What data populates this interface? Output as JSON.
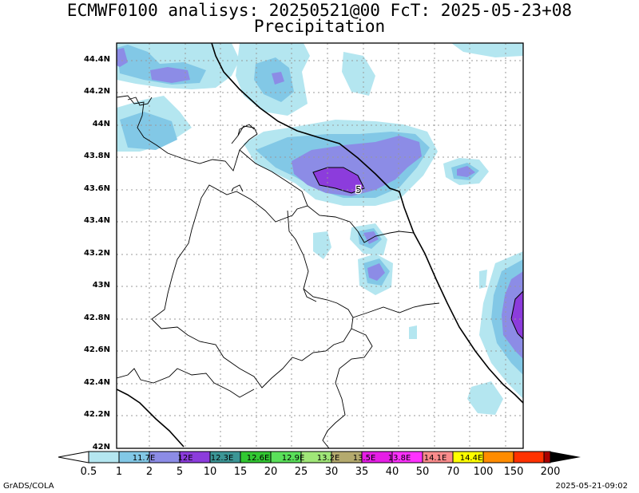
{
  "title": {
    "line1": "ECMWF0100 analisys: 20250521@00 FcT: 2025-05-23+08",
    "line2": "Precipitation"
  },
  "map": {
    "lat_labels": [
      "44.4N",
      "44.2N",
      "44N",
      "43.8N",
      "43.6N",
      "43.4N",
      "43.2N",
      "43N",
      "42.8N",
      "42.6N",
      "42.4N",
      "42.2N",
      "42N"
    ],
    "contour_label": "5",
    "grid": "dotted",
    "colors": {
      "light_blue": "#b4e6f0",
      "mid_blue": "#82c8e6",
      "lavender": "#8c8ce6",
      "purple": "#8c3cdc"
    }
  },
  "colorbar": {
    "labels": [
      "0.5",
      "1",
      "2",
      "5",
      "10",
      "15",
      "20",
      "25",
      "30",
      "35",
      "40",
      "50",
      "70",
      "100",
      "150",
      "200"
    ],
    "box_labels": [
      "11.7E",
      "12E",
      "12.3E",
      "12.6E",
      "12.9E",
      "13.2E",
      "13.5E",
      "13.8E",
      "14.1E",
      "14.4E"
    ],
    "colors": [
      "#b4e6f0",
      "#82c8e6",
      "#8c8ce6",
      "#8c3cdc",
      "#3c9696",
      "#32c832",
      "#5ae05a",
      "#a0e678",
      "#b4aa6e",
      "#e61ee6",
      "#ff32ff",
      "#fa8c8c",
      "#ffff00",
      "#ff8c00",
      "#ff3200",
      "#aa0000"
    ]
  },
  "footer": {
    "left": "GrADS/COLA",
    "right": "2025-05-21-09:02"
  }
}
